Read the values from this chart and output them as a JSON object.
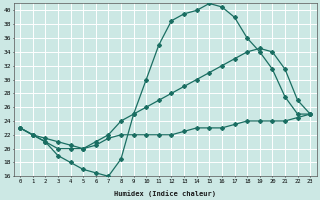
{
  "xlabel": "Humidex (Indice chaleur)",
  "bg_color": "#cce8e4",
  "line_color": "#1a6e62",
  "grid_color": "#ffffff",
  "xlim": [
    -0.5,
    23.5
  ],
  "ylim": [
    16,
    41
  ],
  "xticks": [
    0,
    1,
    2,
    3,
    4,
    5,
    6,
    7,
    8,
    9,
    10,
    11,
    12,
    13,
    14,
    15,
    16,
    17,
    18,
    19,
    20,
    21,
    22,
    23
  ],
  "yticks": [
    16,
    18,
    20,
    22,
    24,
    26,
    28,
    30,
    32,
    34,
    36,
    38,
    40
  ],
  "series1_x": [
    0,
    1,
    2,
    3,
    4,
    5,
    6,
    7,
    8,
    9,
    10,
    11,
    12,
    13,
    14,
    15,
    16,
    17,
    18,
    19,
    20,
    21,
    22,
    23
  ],
  "series1_y": [
    23,
    22,
    21,
    19,
    18,
    17,
    16.5,
    16,
    18.5,
    25,
    30,
    35,
    38.5,
    39.5,
    40,
    41,
    40.5,
    39,
    36,
    34,
    31.5,
    27.5,
    25,
    25
  ],
  "series2_x": [
    0,
    1,
    2,
    3,
    4,
    5,
    6,
    7,
    8,
    9,
    10,
    11,
    12,
    13,
    14,
    15,
    16,
    17,
    18,
    19,
    20,
    21,
    22,
    23
  ],
  "series2_y": [
    23,
    22,
    21.5,
    21,
    20.5,
    20,
    21,
    22,
    24,
    25,
    26,
    27,
    28,
    29,
    30,
    31,
    32,
    33,
    34,
    34.5,
    34,
    31.5,
    27,
    25
  ],
  "series3_x": [
    0,
    1,
    2,
    3,
    4,
    5,
    6,
    7,
    8,
    9,
    10,
    11,
    12,
    13,
    14,
    15,
    16,
    17,
    18,
    19,
    20,
    21,
    22,
    23
  ],
  "series3_y": [
    23,
    22,
    21,
    20,
    20,
    20,
    20.5,
    21.5,
    22,
    22,
    22,
    22,
    22,
    22.5,
    23,
    23,
    23,
    23.5,
    24,
    24,
    24,
    24,
    24.5,
    25
  ]
}
